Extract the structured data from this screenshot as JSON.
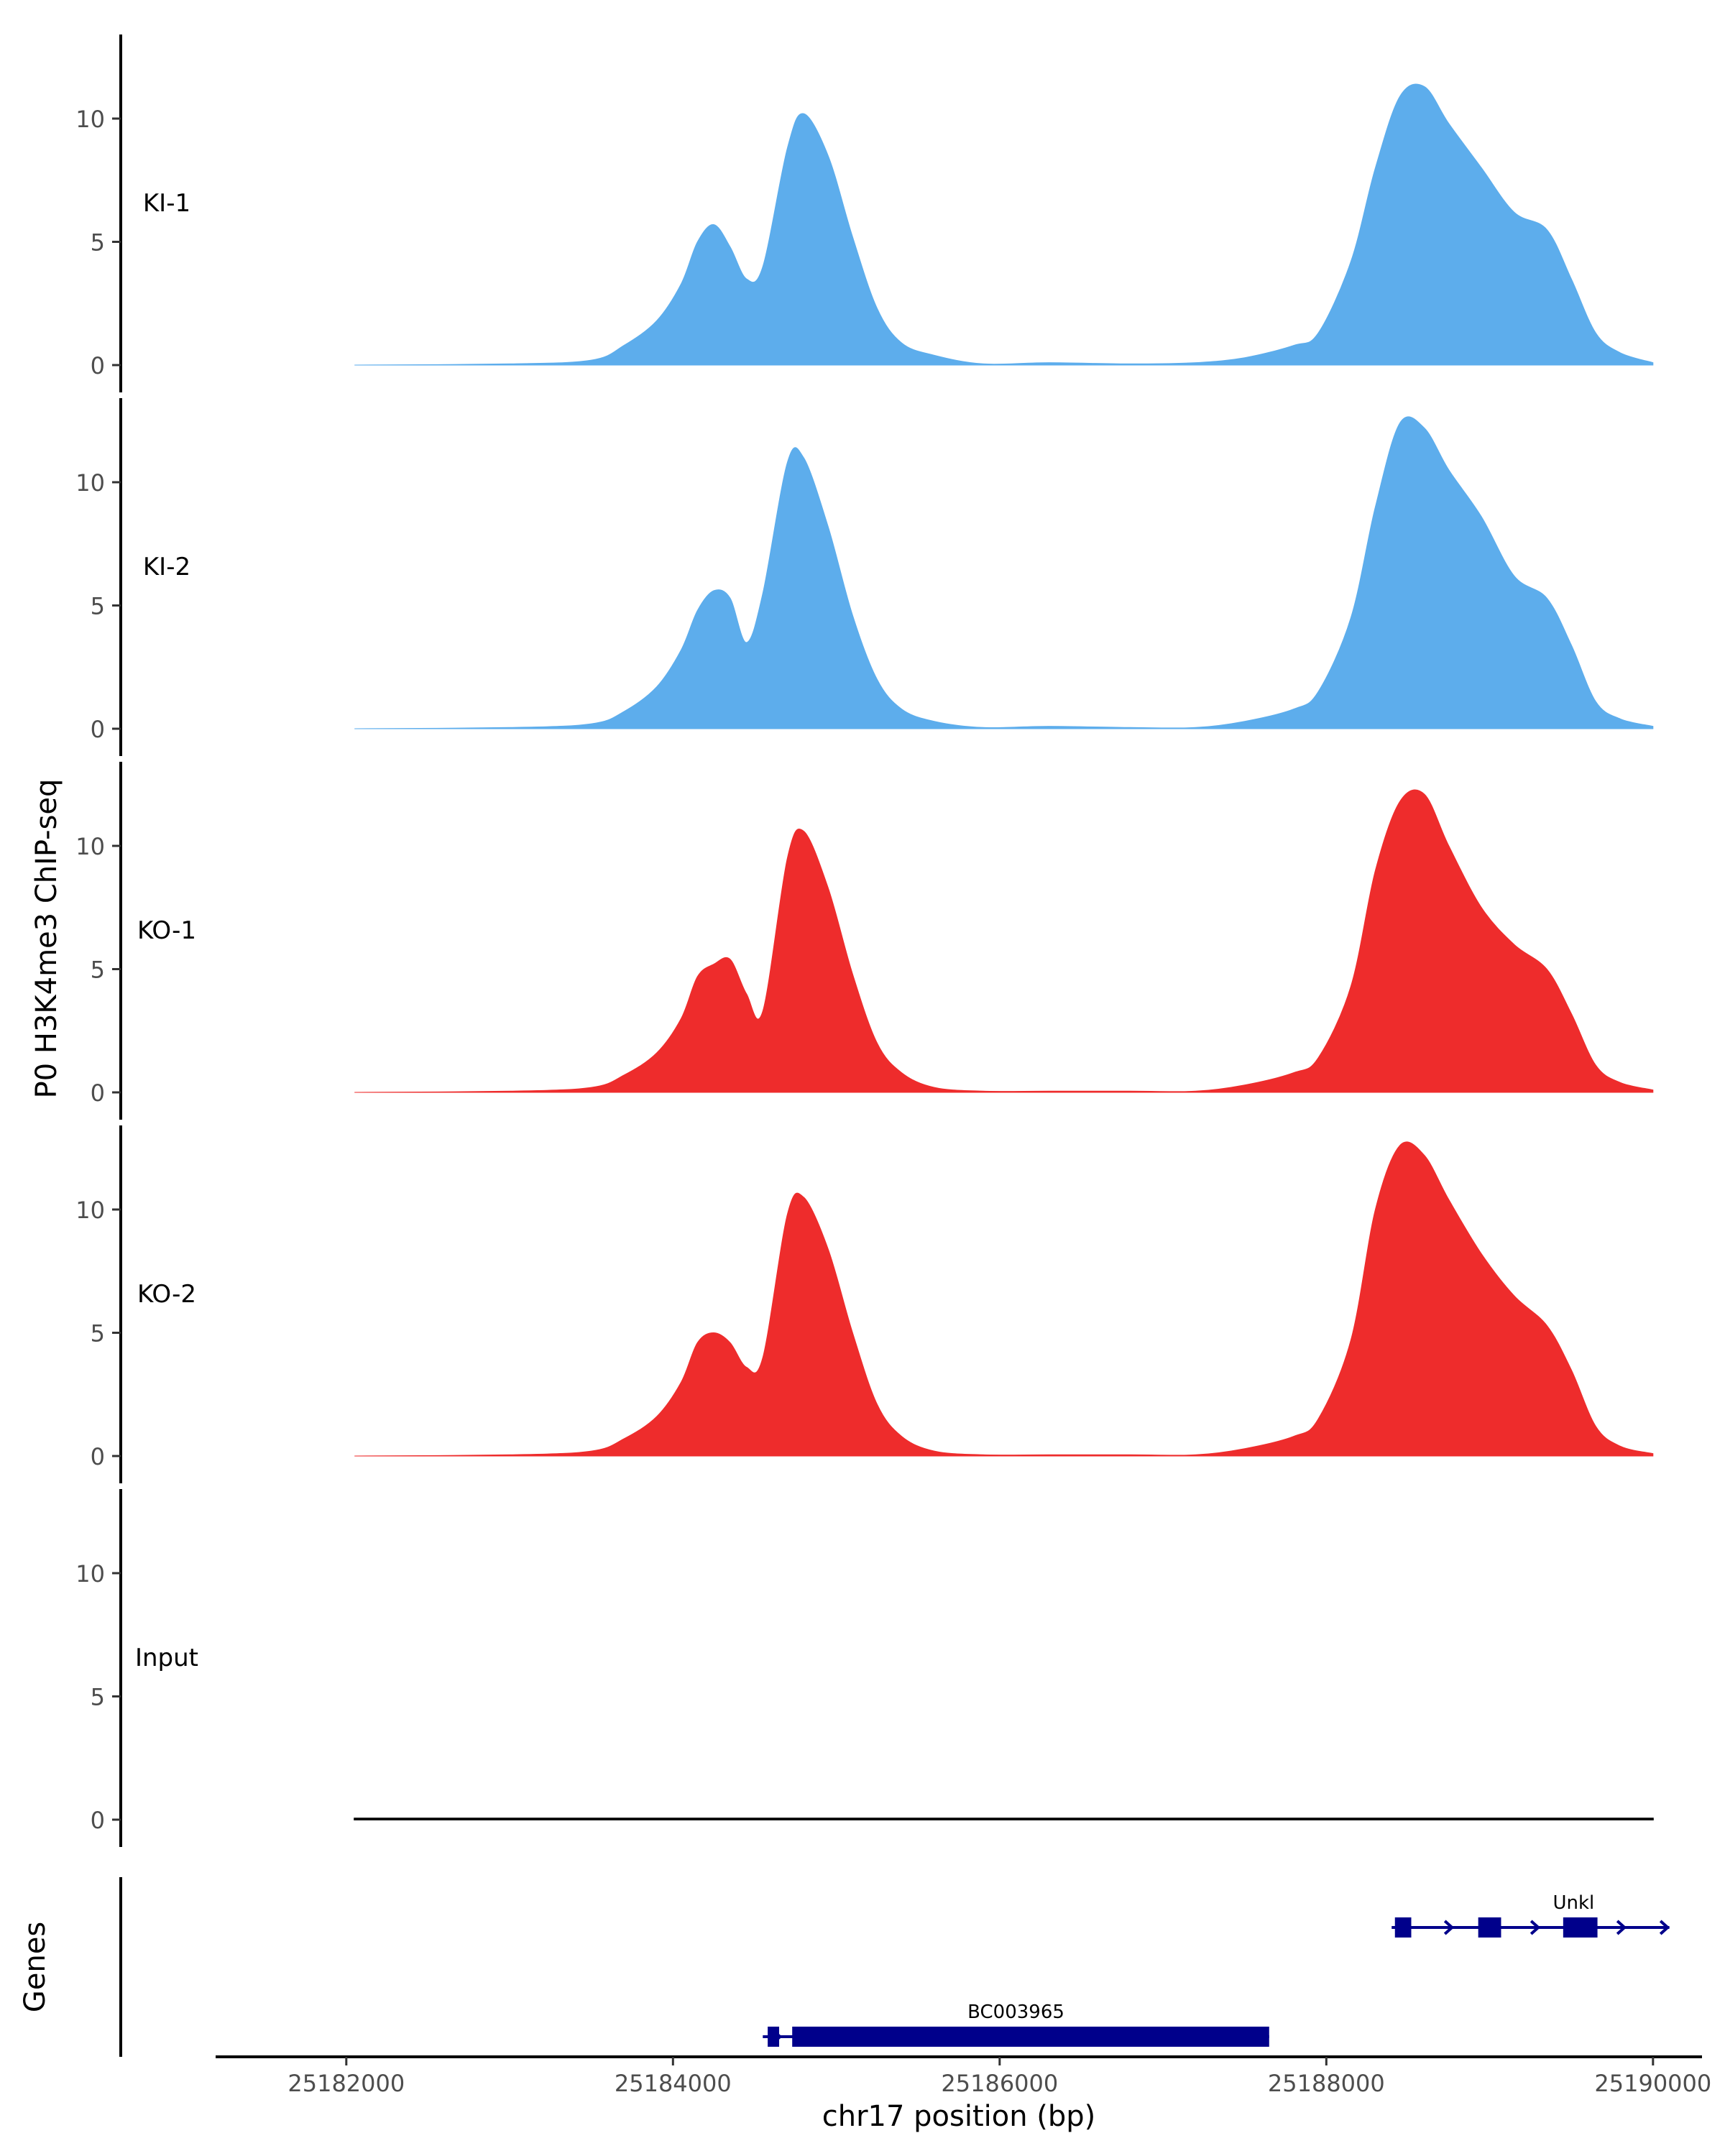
{
  "chart_data": {
    "type": "area",
    "title": "",
    "ylabel": "P0 H3K4me3 ChIP-seq",
    "xlabel": "chr17 position (bp)",
    "xlim": [
      25181200,
      25190300
    ],
    "ylim": [
      0,
      13.5
    ],
    "x_ticks": [
      25182000,
      25184000,
      25186000,
      25188000,
      25190000
    ],
    "x_tick_labels": [
      "25182000",
      "25184000",
      "25186000",
      "25188000",
      "25190000"
    ],
    "y_ticks": [
      0,
      5,
      10
    ],
    "y_tick_labels": [
      "0",
      "5",
      "10"
    ],
    "colors": {
      "KI": "#5DADEC",
      "KO": "#EE2C2C",
      "Input": "#1a1a1a",
      "gene": "#00008B"
    },
    "x": [
      25182050,
      25183000,
      25183500,
      25183700,
      25183900,
      25184050,
      25184150,
      25184250,
      25184350,
      25184450,
      25184550,
      25184700,
      25184800,
      25184950,
      25185100,
      25185250,
      25185400,
      25185600,
      25185900,
      25186300,
      25186800,
      25187200,
      25187500,
      25187800,
      25187950,
      25188150,
      25188300,
      25188450,
      25188600,
      25188750,
      25188950,
      25189150,
      25189350,
      25189500,
      25189650,
      25189800,
      25190000
    ],
    "series": [
      {
        "name": "KI-1",
        "color": "#5DADEC",
        "values": [
          0,
          0.05,
          0.2,
          0.8,
          1.8,
          3.3,
          5.0,
          5.7,
          4.8,
          3.5,
          4.0,
          8.8,
          10.2,
          8.5,
          5.2,
          2.3,
          0.9,
          0.4,
          0.05,
          0.1,
          0.05,
          0.1,
          0.3,
          0.8,
          1.3,
          4.2,
          8.0,
          10.9,
          11.3,
          9.8,
          8.0,
          6.2,
          5.5,
          3.5,
          1.3,
          0.5,
          0.1
        ]
      },
      {
        "name": "KI-2",
        "color": "#5DADEC",
        "values": [
          0,
          0.05,
          0.2,
          0.7,
          1.7,
          3.2,
          4.8,
          5.6,
          5.3,
          3.5,
          5.5,
          10.8,
          11.0,
          8.2,
          4.6,
          2.0,
          0.8,
          0.3,
          0.05,
          0.1,
          0.05,
          0.05,
          0.3,
          0.8,
          1.5,
          4.5,
          9.0,
          12.4,
          12.2,
          10.5,
          8.6,
          6.2,
          5.3,
          3.4,
          1.1,
          0.4,
          0.1
        ]
      },
      {
        "name": "KO-1",
        "color": "#EE2C2C",
        "values": [
          0,
          0.05,
          0.2,
          0.7,
          1.6,
          3.0,
          4.7,
          5.2,
          5.4,
          4.0,
          3.3,
          9.5,
          10.6,
          8.3,
          4.8,
          2.0,
          0.8,
          0.2,
          0.05,
          0.05,
          0.05,
          0.05,
          0.3,
          0.8,
          1.4,
          4.3,
          9.0,
          11.8,
          12.1,
          10.0,
          7.5,
          6.0,
          5.0,
          3.2,
          1.1,
          0.4,
          0.1
        ]
      },
      {
        "name": "KO-2",
        "color": "#EE2C2C",
        "values": [
          0,
          0.05,
          0.2,
          0.7,
          1.6,
          3.0,
          4.6,
          5.0,
          4.6,
          3.6,
          4.0,
          9.8,
          10.5,
          8.4,
          5.0,
          2.1,
          0.8,
          0.2,
          0.05,
          0.05,
          0.05,
          0.05,
          0.3,
          0.8,
          1.5,
          4.7,
          10.0,
          12.6,
          12.2,
          10.4,
          8.2,
          6.5,
          5.3,
          3.5,
          1.2,
          0.4,
          0.1
        ]
      },
      {
        "name": "Input",
        "color": "#1a1a1a",
        "values": [
          0.05,
          0.05,
          0.05,
          0.05,
          0.05,
          0.05,
          0.05,
          0.05,
          0.05,
          0.05,
          0.05,
          0.05,
          0.05,
          0.05,
          0.05,
          0.05,
          0.05,
          0.05,
          0.05,
          0.05,
          0.05,
          0.05,
          0.05,
          0.05,
          0.05,
          0.05,
          0.05,
          0.05,
          0.05,
          0.05,
          0.05,
          0.05,
          0.05,
          0.05,
          0.05,
          0.05,
          0.05
        ]
      }
    ],
    "genes_track_label": "Genes",
    "genes": [
      {
        "name": "Unkl",
        "start": 25188400,
        "end": 25190100,
        "strand": "+",
        "exons": [
          [
            25188420,
            25188520
          ],
          [
            25188930,
            25189070
          ],
          [
            25189450,
            25189660
          ]
        ]
      },
      {
        "name": "BC003965",
        "start": 25184550,
        "end": 25187650,
        "strand": "+",
        "exons": [
          [
            25184580,
            25184650
          ],
          [
            25184730,
            25187650
          ]
        ]
      }
    ]
  }
}
